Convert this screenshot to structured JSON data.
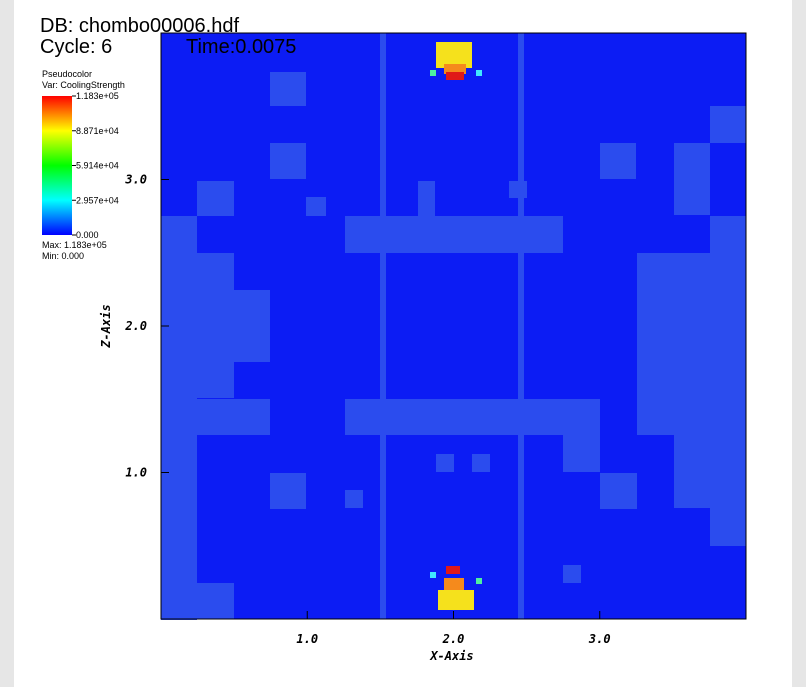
{
  "header": {
    "db": "DB: chombo00006.hdf",
    "cycle": "Cycle: 6",
    "time": "Time:0.0075"
  },
  "legend": {
    "plot": "Pseudocolor",
    "var": "Var: CoolingStrength",
    "max": "Max: 1.183e+05",
    "min": "Min: 0.000"
  },
  "chart_data": {
    "type": "pseudocolor",
    "xlabel": "X-Axis",
    "ylabel": "Z-Axis",
    "xlim": [
      0,
      4
    ],
    "ylim": [
      0,
      4
    ],
    "xticks": [
      {
        "value": 1,
        "label": "1.0"
      },
      {
        "value": 2,
        "label": "2.0"
      },
      {
        "value": 3,
        "label": "3.0"
      }
    ],
    "yticks": [
      {
        "value": 1,
        "label": "1.0"
      },
      {
        "value": 2,
        "label": "2.0"
      },
      {
        "value": 3,
        "label": "3.0"
      }
    ],
    "clim": [
      0,
      118300
    ],
    "cticks": [
      {
        "value": 118300,
        "label": "1.183e+05"
      },
      {
        "value": 88710,
        "label": "8.871e+04"
      },
      {
        "value": 59140,
        "label": "5.914e+04"
      },
      {
        "value": 29570,
        "label": "2.957e+04"
      },
      {
        "value": 0,
        "label": "0.000"
      }
    ]
  }
}
